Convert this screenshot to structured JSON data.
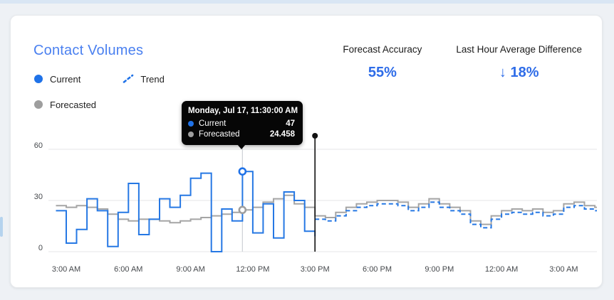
{
  "card": {
    "title": "Contact Volumes"
  },
  "legend": {
    "items": [
      {
        "label": "Current",
        "color": "#1f72e8",
        "marker": "dot"
      },
      {
        "label": "Trend",
        "color": "#1f72e8",
        "marker": "dashed-line"
      },
      {
        "label": "Forecasted",
        "color": "#9e9e9e",
        "marker": "dot"
      }
    ]
  },
  "stats": [
    {
      "label": "Forecast Accuracy",
      "value": "55%"
    },
    {
      "label": "Last Hour Average Difference",
      "value": "↓ 18%"
    }
  ],
  "tooltip": {
    "title": "Monday, Jul 17, 11:30:00 AM",
    "rows": [
      {
        "label": "Current",
        "value": "47",
        "color": "#1f72e8"
      },
      {
        "label": "Forecasted",
        "value": "24.458",
        "color": "#9e9e9e"
      }
    ]
  },
  "chart_data": {
    "type": "line",
    "subtype": "step-after",
    "title": "Contact Volumes",
    "grid": "horizontal-only",
    "grid_color": "#e4e5e7",
    "crosshair_color": "#cdd1d6",
    "now_line_color": "#111111",
    "x_axis": {
      "unit": "time-of-day",
      "start_hour": 2.5,
      "end_hour": 28.5,
      "step_hours": 0.5,
      "tick_hours": [
        3,
        6,
        9,
        12,
        15,
        18,
        21,
        24,
        27
      ],
      "tick_labels": [
        "3:00 AM",
        "6:00 AM",
        "9:00 AM",
        "12:00 PM",
        "3:00 PM",
        "6:00 PM",
        "9:00 PM",
        "12:00 AM",
        "3:00 AM"
      ]
    },
    "y_axis": {
      "ticks": [
        0,
        30,
        60
      ],
      "range": [
        0,
        62
      ]
    },
    "now_marker_hour": 15,
    "highlight": {
      "hour": 11.5,
      "points": [
        {
          "series": "Current",
          "value": 47,
          "color": "#1f72e8"
        },
        {
          "series": "Forecasted",
          "value": 24.458,
          "color": "#9e9e9e"
        }
      ]
    },
    "series": [
      {
        "name": "Current",
        "style": "solid",
        "color": "#2678e4",
        "start_hour": 2.5,
        "values": [
          24,
          5,
          13,
          31,
          24,
          3,
          23,
          40,
          10,
          19,
          31,
          26,
          33,
          43,
          46,
          0,
          25,
          18,
          47,
          11,
          28,
          8,
          35,
          30,
          12,
          9
        ]
      },
      {
        "name": "Trend",
        "style": "dashed",
        "color": "#2678e4",
        "start_hour": 15,
        "values": [
          19,
          18,
          21,
          24,
          26,
          27,
          28,
          28,
          27,
          24,
          26,
          29,
          26,
          24,
          22,
          16,
          14,
          19,
          22,
          23,
          22,
          23,
          21,
          22,
          26,
          27,
          25,
          24
        ]
      },
      {
        "name": "Forecasted",
        "style": "solid",
        "color": "#a5a5a5",
        "start_hour": 2.5,
        "values": [
          27,
          26,
          27,
          26,
          25,
          22,
          19,
          18,
          19,
          19,
          18,
          17,
          18,
          19,
          20,
          21,
          22,
          23,
          24.458,
          26,
          29,
          31,
          33,
          28,
          26,
          21,
          20,
          23,
          26,
          28,
          29,
          30,
          30,
          29,
          26,
          28,
          31,
          28,
          26,
          24,
          18,
          16,
          21,
          24,
          25,
          24,
          25,
          23,
          24,
          28,
          29,
          27,
          26
        ]
      }
    ]
  }
}
